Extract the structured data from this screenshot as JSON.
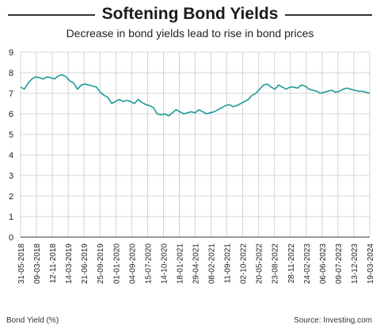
{
  "header": {
    "title": "Softening Bond Yields",
    "subtitle": "Decrease in bond yields lead to rise in bond prices"
  },
  "footer": {
    "ylabel_note": "Bond Yield (%)",
    "source": "Source: Investing.com"
  },
  "colors": {
    "line": "#1a9a9a",
    "grid": "#c8c8c8",
    "axis": "#333333"
  },
  "chart_data": {
    "type": "line",
    "title": "Softening Bond Yields",
    "subtitle": "Decrease in bond yields lead to rise in bond prices",
    "ylim": [
      0,
      9
    ],
    "yticks": [
      "0",
      "1",
      "2",
      "3",
      "4",
      "5",
      "6",
      "7",
      "8",
      "9"
    ],
    "grid": true,
    "x_tick_labels": [
      "31-05-2018",
      "09-03-2018",
      "12-11-2018",
      "14-03-2019",
      "21-06-2019",
      "25-09-2019",
      "01-01-2020",
      "04-09-2020",
      "15-07-2020",
      "14-10-2020",
      "18-01-2021",
      "29-04-2021",
      "08-02-2021",
      "11-09-2021",
      "02-10-2022",
      "20-05-2022",
      "23-08-2022",
      "28-11-2022",
      "24-02-2023",
      "06-06-2023",
      "09-07-2023",
      "13-12-2023",
      "19-03-2024"
    ],
    "series": [
      {
        "values": [
          7.3,
          7.2,
          7.5,
          7.7,
          7.8,
          7.75,
          7.7,
          7.8,
          7.75,
          7.7,
          7.85,
          7.9,
          7.8,
          7.6,
          7.5,
          7.2,
          7.4,
          7.45,
          7.4,
          7.35,
          7.3,
          7.05,
          6.9,
          6.8,
          6.5,
          6.6,
          6.7,
          6.6,
          6.65,
          6.6,
          6.5,
          6.7,
          6.55,
          6.45,
          6.4,
          6.3,
          6.0,
          5.95,
          6.0,
          5.9,
          6.05,
          6.2,
          6.1,
          6.0,
          6.05,
          6.1,
          6.05,
          6.2,
          6.1,
          6.0,
          6.05,
          6.1,
          6.2,
          6.3,
          6.4,
          6.45,
          6.35,
          6.4,
          6.5,
          6.6,
          6.7,
          6.9,
          7.0,
          7.2,
          7.4,
          7.45,
          7.3,
          7.2,
          7.4,
          7.3,
          7.2,
          7.3,
          7.3,
          7.25,
          7.4,
          7.35,
          7.2,
          7.15,
          7.1,
          7.0,
          7.05,
          7.1,
          7.15,
          7.05,
          7.1,
          7.2,
          7.25,
          7.2,
          7.15,
          7.1,
          7.1,
          7.05,
          7.0
        ]
      }
    ]
  }
}
